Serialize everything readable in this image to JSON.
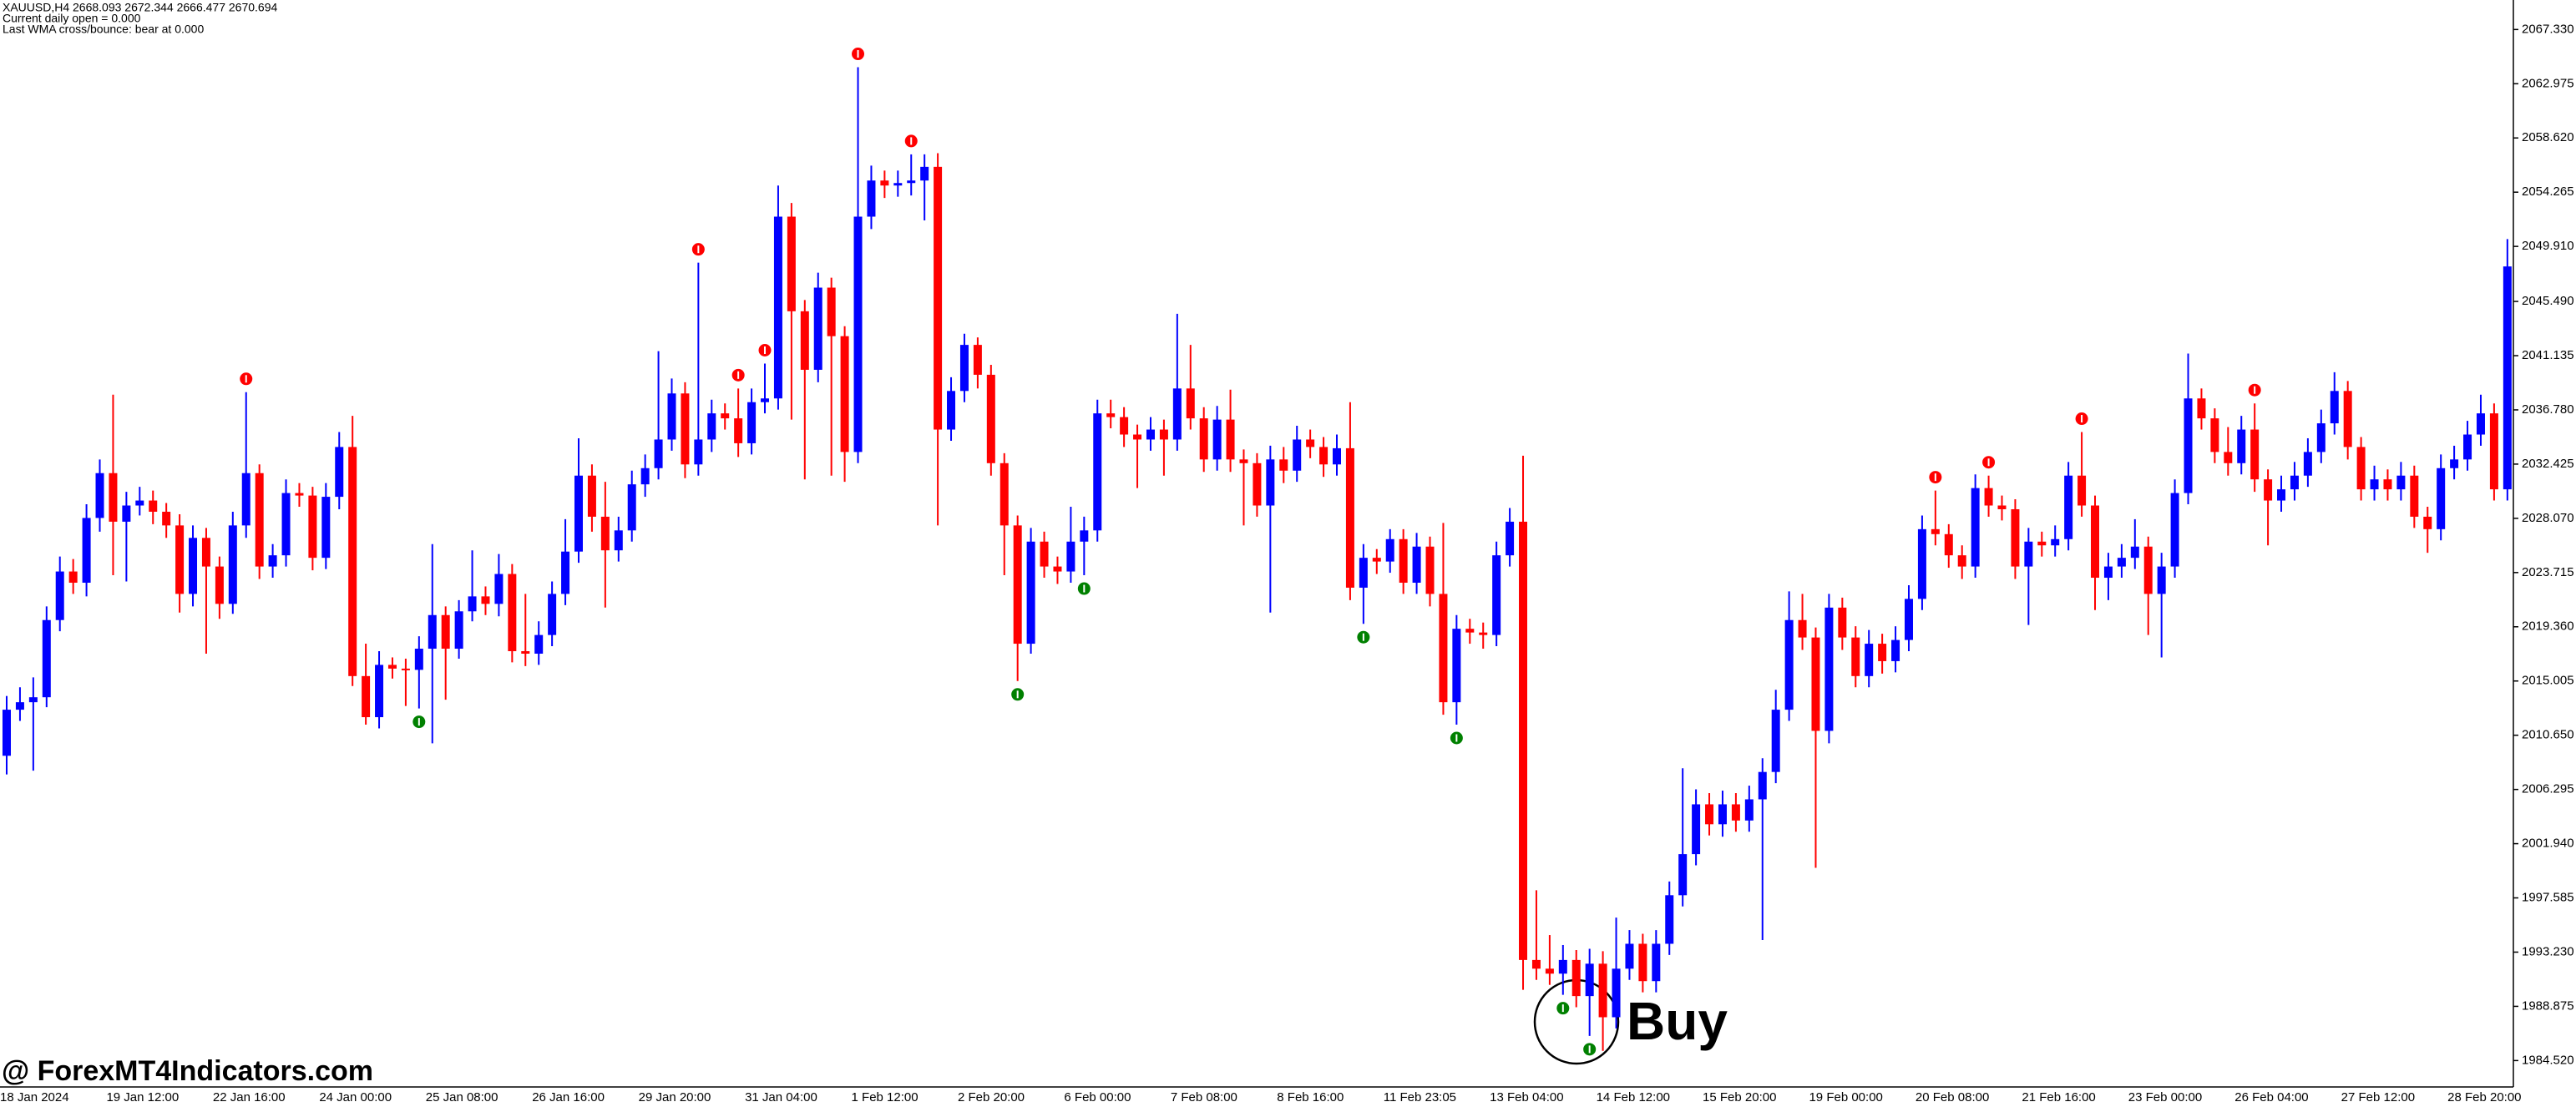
{
  "header": [
    "XAUUSD,H4  2668.093 2672.344 2666.477 2670.694",
    "Current daily open = 0.000",
    "Last WMA cross/bounce: bear at 0.000"
  ],
  "watermark": "@ ForexMT4Indicators.com",
  "chart_data": {
    "type": "candlestick",
    "annotation": "Buy",
    "up_color": "#0000ff",
    "down_color": "#ff0000",
    "sell_color": "#ff0000",
    "buy_color": "#008000",
    "grid": false,
    "ylim": [
      1982.4,
      2069.7
    ],
    "yticks": [
      {
        "value": 2067.33,
        "label": "2067.330"
      },
      2062.975,
      {
        "value": 2058.62,
        "label": "2058.620"
      },
      2054.265,
      {
        "value": 2049.91,
        "label": "2049.910"
      },
      {
        "value": 2045.49,
        "label": "2045.490"
      },
      2041.135,
      {
        "value": 2036.78,
        "label": "2036.780"
      },
      2032.425,
      {
        "value": 2028.07,
        "label": "2028.070"
      },
      2023.715,
      {
        "value": 2019.36,
        "label": "2019.360"
      },
      2015.005,
      {
        "value": 2010.65,
        "label": "2010.650"
      },
      2006.295,
      {
        "value": 2001.94,
        "label": "2001.940"
      },
      1997.585,
      {
        "value": 1993.23,
        "label": "1993.230"
      },
      1988.875,
      {
        "value": 1984.52,
        "label": "1984.520"
      }
    ],
    "categories": [
      "18 Jan 2024",
      null,
      null,
      null,
      null,
      null,
      null,
      null,
      "19 Jan 12:00",
      null,
      null,
      null,
      null,
      null,
      null,
      null,
      "22 Jan 16:00",
      null,
      null,
      null,
      null,
      null,
      null,
      null,
      "24 Jan 00:00",
      null,
      null,
      null,
      null,
      null,
      null,
      null,
      "25 Jan 08:00",
      null,
      null,
      null,
      null,
      null,
      null,
      null,
      "26 Jan 16:00",
      null,
      null,
      null,
      null,
      null,
      null,
      null,
      "29 Jan 20:00",
      null,
      null,
      null,
      null,
      null,
      null,
      null,
      "31 Jan 04:00",
      null,
      null,
      null,
      null,
      null,
      null,
      null,
      "1 Feb 12:00",
      null,
      null,
      null,
      null,
      null,
      null,
      null,
      "2 Feb 20:00",
      null,
      null,
      null,
      null,
      null,
      null,
      null,
      "6 Feb 00:00",
      null,
      null,
      null,
      null,
      null,
      null,
      null,
      "7 Feb 08:00",
      null,
      null,
      null,
      null,
      null,
      null,
      null,
      "8 Feb 16:00",
      null,
      null,
      null,
      null,
      null,
      null,
      null,
      "11 Feb 23:05",
      null,
      null,
      null,
      null,
      null,
      null,
      null,
      "13 Feb 04:00",
      null,
      null,
      null,
      null,
      null,
      null,
      null,
      "14 Feb 12:00",
      null,
      null,
      null,
      null,
      null,
      null,
      null,
      "15 Feb 20:00",
      null,
      null,
      null,
      null,
      null,
      null,
      null,
      "19 Feb 00:00",
      null,
      null,
      null,
      null,
      null,
      null,
      null,
      "20 Feb 08:00",
      null,
      null,
      null,
      null,
      null,
      null,
      null,
      "21 Feb 16:00",
      null,
      null,
      null,
      null,
      null,
      null,
      null,
      "23 Feb 00:00",
      null,
      null,
      null,
      null,
      null,
      null,
      null,
      "26 Feb 04:00",
      null,
      null,
      null,
      null,
      null,
      null,
      null,
      "27 Feb 12:00",
      null,
      null,
      null,
      null,
      null,
      null,
      null,
      "28 Feb 20:00",
      null,
      null,
      null,
      null
    ],
    "open": [
      2009.0,
      2012.7,
      2013.3,
      2013.7,
      2019.9,
      2023.8,
      2022.9,
      2028.1,
      2031.7,
      2027.8,
      2029.1,
      2029.5,
      2028.6,
      2027.5,
      2022.0,
      2026.5,
      2024.2,
      2021.2,
      2027.5,
      2031.7,
      2024.2,
      2025.1,
      2030.1,
      2029.9,
      2024.9,
      2029.8,
      2033.8,
      2015.4,
      2012.1,
      2016.3,
      2016.0,
      2015.9,
      2017.6,
      2020.3,
      2017.6,
      2020.6,
      2021.8,
      2021.2,
      2023.6,
      2017.4,
      2017.2,
      2018.7,
      2022.0,
      2025.4,
      2031.5,
      2028.2,
      2025.5,
      2027.1,
      2030.8,
      2032.1,
      2034.4,
      2038.1,
      2032.4,
      2034.4,
      2036.5,
      2036.1,
      2034.1,
      2037.4,
      2037.7,
      2052.3,
      2044.7,
      2040.0,
      2046.6,
      2042.7,
      2033.4,
      2052.3,
      2055.2,
      2054.8,
      2055.0,
      2055.2,
      2056.3,
      2035.2,
      2038.3,
      2042.0,
      2039.6,
      2032.5,
      2027.5,
      2018.0,
      2026.2,
      2024.2,
      2023.8,
      2026.2,
      2027.1,
      2036.5,
      2036.2,
      2034.8,
      2034.4,
      2035.2,
      2034.4,
      2038.5,
      2036.1,
      2032.8,
      2036.0,
      2032.8,
      2032.5,
      2029.1,
      2032.8,
      2031.9,
      2034.4,
      2033.8,
      2032.4,
      2033.7,
      2022.5,
      2024.9,
      2024.6,
      2026.4,
      2022.9,
      2025.8,
      2022.0,
      2013.3,
      2019.2,
      2018.9,
      2018.7,
      2025.1,
      2027.8,
      1992.6,
      1991.9,
      1991.5,
      1992.6,
      1989.7,
      1992.3,
      1988.0,
      1991.9,
      1993.9,
      1990.9,
      1993.9,
      1997.8,
      2001.1,
      2005.1,
      2003.5,
      2005.1,
      2003.8,
      2005.5,
      2007.7,
      2012.7,
      2019.9,
      2018.5,
      2011.0,
      2020.9,
      2018.5,
      2015.4,
      2018.0,
      2016.6,
      2018.3,
      2021.6,
      2027.2,
      2026.8,
      2025.1,
      2024.2,
      2030.5,
      2029.1,
      2028.8,
      2024.2,
      2026.2,
      2025.9,
      2026.4,
      2031.5,
      2029.1,
      2023.3,
      2024.2,
      2024.9,
      2025.8,
      2022.0,
      2024.2,
      2030.1,
      2037.7,
      2036.1,
      2033.4,
      2032.5,
      2035.2,
      2031.2,
      2029.5,
      2030.4,
      2031.5,
      2033.4,
      2035.7,
      2038.3,
      2033.8,
      2030.4,
      2031.2,
      2030.4,
      2031.5,
      2028.2,
      2027.2,
      2032.1,
      2032.8,
      2034.8,
      2036.5,
      2030.4
    ],
    "high": [
      2013.8,
      2014.5,
      2015.3,
      2021.0,
      2025.0,
      2024.8,
      2029.2,
      2032.8,
      2038.0,
      2030.2,
      2030.6,
      2030.3,
      2029.3,
      2028.4,
      2027.5,
      2027.3,
      2025.0,
      2028.6,
      2038.2,
      2032.4,
      2026.0,
      2031.2,
      2030.9,
      2030.6,
      2030.9,
      2035.0,
      2036.3,
      2018.0,
      2017.4,
      2016.9,
      2016.8,
      2018.6,
      2026.0,
      2021.0,
      2021.5,
      2025.5,
      2022.6,
      2025.2,
      2024.4,
      2022.0,
      2019.8,
      2023.0,
      2028.0,
      2034.5,
      2032.4,
      2031.0,
      2028.2,
      2031.9,
      2033.2,
      2041.5,
      2039.3,
      2039.0,
      2048.6,
      2037.6,
      2037.3,
      2038.5,
      2038.5,
      2040.5,
      2054.8,
      2053.4,
      2045.6,
      2047.8,
      2047.4,
      2043.5,
      2064.3,
      2056.4,
      2056.0,
      2056.0,
      2057.3,
      2057.3,
      2057.4,
      2039.4,
      2042.9,
      2042.6,
      2040.4,
      2033.3,
      2028.3,
      2027.3,
      2027.0,
      2025.0,
      2029.0,
      2028.2,
      2037.6,
      2037.6,
      2037.0,
      2035.6,
      2036.2,
      2036.0,
      2044.5,
      2042.0,
      2037.0,
      2037.1,
      2038.4,
      2033.6,
      2033.3,
      2033.9,
      2033.8,
      2035.5,
      2035.2,
      2034.6,
      2034.8,
      2037.4,
      2026.0,
      2025.6,
      2027.2,
      2027.2,
      2026.9,
      2026.6,
      2027.7,
      2020.3,
      2020.0,
      2019.7,
      2026.2,
      2028.9,
      2033.1,
      1998.2,
      1994.6,
      1993.8,
      1993.4,
      1993.5,
      1993.3,
      1996.0,
      1995.0,
      1994.7,
      1995.0,
      1998.9,
      2008.0,
      2006.3,
      2006.0,
      2006.2,
      2006.0,
      2006.6,
      2008.8,
      2014.3,
      2022.2,
      2022.0,
      2019.3,
      2022.0,
      2021.7,
      2019.4,
      2019.1,
      2018.8,
      2019.4,
      2022.7,
      2028.3,
      2030.3,
      2027.6,
      2025.9,
      2031.6,
      2031.5,
      2029.9,
      2029.6,
      2027.3,
      2027.0,
      2027.5,
      2032.6,
      2035.0,
      2029.9,
      2025.3,
      2026.0,
      2028.0,
      2026.6,
      2025.3,
      2031.2,
      2041.3,
      2038.5,
      2036.9,
      2035.4,
      2036.3,
      2037.3,
      2032.0,
      2031.5,
      2032.6,
      2034.5,
      2036.8,
      2039.8,
      2039.1,
      2034.6,
      2032.3,
      2032.0,
      2032.6,
      2032.3,
      2029.0,
      2033.2,
      2033.9,
      2035.9,
      2038.0,
      2037.3,
      2050.5
    ],
    "low": [
      2007.5,
      2011.8,
      2007.8,
      2012.9,
      2019.0,
      2022.0,
      2021.8,
      2027.0,
      2023.5,
      2023.0,
      2028.3,
      2027.6,
      2026.5,
      2020.5,
      2021.0,
      2017.2,
      2020.0,
      2020.4,
      2026.5,
      2023.2,
      2023.3,
      2024.2,
      2029.0,
      2023.9,
      2024.0,
      2028.8,
      2014.6,
      2011.5,
      2011.2,
      2015.2,
      2013.0,
      2012.8,
      2010.0,
      2013.5,
      2016.8,
      2019.8,
      2020.3,
      2020.2,
      2016.5,
      2016.2,
      2016.3,
      2017.8,
      2021.1,
      2024.5,
      2027.0,
      2020.9,
      2024.6,
      2026.2,
      2029.8,
      2031.2,
      2033.5,
      2031.3,
      2031.5,
      2033.4,
      2035.2,
      2033.0,
      2033.2,
      2036.5,
      2036.8,
      2036.0,
      2031.2,
      2039.0,
      2031.5,
      2031.0,
      2032.5,
      2051.3,
      2053.8,
      2053.9,
      2054.0,
      2052.0,
      2027.5,
      2034.3,
      2037.4,
      2038.5,
      2031.5,
      2023.5,
      2015.0,
      2017.2,
      2023.3,
      2022.8,
      2022.9,
      2023.5,
      2026.2,
      2035.3,
      2033.8,
      2030.5,
      2033.5,
      2031.5,
      2033.5,
      2035.2,
      2031.8,
      2031.9,
      2031.8,
      2027.5,
      2028.2,
      2020.5,
      2030.9,
      2031.0,
      2032.9,
      2031.4,
      2031.5,
      2021.5,
      2019.6,
      2023.6,
      2023.7,
      2022.0,
      2022.0,
      2021.0,
      2012.3,
      2011.5,
      2018.0,
      2017.6,
      2017.8,
      2024.2,
      1990.2,
      1991.0,
      1990.6,
      1989.8,
      1988.8,
      1986.5,
      1985.3,
      1987.1,
      1991.0,
      1990.0,
      1990.0,
      1993.0,
      1996.9,
      2000.2,
      2002.6,
      2002.5,
      2002.9,
      2002.9,
      1994.2,
      2006.8,
      2011.8,
      2017.5,
      2000.0,
      2010.0,
      2017.5,
      2014.5,
      2014.5,
      2015.6,
      2015.7,
      2017.4,
      2020.7,
      2025.9,
      2024.1,
      2023.2,
      2023.3,
      2028.2,
      2027.9,
      2023.2,
      2019.5,
      2025.0,
      2025.0,
      2025.5,
      2028.2,
      2020.7,
      2021.5,
      2023.3,
      2024.0,
      2018.7,
      2016.9,
      2023.3,
      2029.2,
      2035.2,
      2032.5,
      2031.5,
      2031.6,
      2030.2,
      2025.9,
      2028.6,
      2029.5,
      2030.6,
      2032.5,
      2034.8,
      2032.8,
      2029.5,
      2029.5,
      2029.5,
      2029.5,
      2027.3,
      2025.3,
      2026.3,
      2031.2,
      2031.9,
      2033.9,
      2029.5,
      2029.5
    ],
    "close": [
      2012.7,
      2013.3,
      2013.7,
      2019.9,
      2023.8,
      2022.9,
      2028.1,
      2031.7,
      2027.8,
      2029.1,
      2029.5,
      2028.6,
      2027.5,
      2022.0,
      2026.5,
      2024.2,
      2021.2,
      2027.5,
      2031.7,
      2024.2,
      2025.1,
      2030.1,
      2029.9,
      2024.9,
      2029.8,
      2033.8,
      2015.4,
      2012.1,
      2016.3,
      2016.0,
      2015.9,
      2017.6,
      2020.3,
      2017.6,
      2020.6,
      2021.8,
      2021.2,
      2023.6,
      2017.4,
      2017.2,
      2018.7,
      2022.0,
      2025.4,
      2031.5,
      2028.2,
      2025.5,
      2027.1,
      2030.8,
      2032.1,
      2034.4,
      2038.1,
      2032.4,
      2034.4,
      2036.5,
      2036.1,
      2034.1,
      2037.4,
      2037.7,
      2052.3,
      2044.7,
      2040.0,
      2046.6,
      2042.7,
      2033.4,
      2052.3,
      2055.2,
      2054.8,
      2055.0,
      2055.2,
      2056.3,
      2035.2,
      2038.3,
      2042.0,
      2039.6,
      2032.5,
      2027.5,
      2018.0,
      2026.2,
      2024.2,
      2023.8,
      2026.2,
      2027.1,
      2036.5,
      2036.2,
      2034.8,
      2034.4,
      2035.2,
      2034.4,
      2038.5,
      2036.1,
      2032.8,
      2036.0,
      2032.8,
      2032.5,
      2029.1,
      2032.8,
      2031.9,
      2034.4,
      2033.8,
      2032.4,
      2033.7,
      2022.5,
      2024.9,
      2024.6,
      2026.4,
      2022.9,
      2025.8,
      2022.0,
      2013.3,
      2019.2,
      2018.9,
      2018.7,
      2025.1,
      2027.8,
      1992.6,
      1991.9,
      1991.5,
      1992.6,
      1989.7,
      1992.3,
      1988.0,
      1991.9,
      1993.9,
      1990.9,
      1993.9,
      1997.8,
      2001.1,
      2005.1,
      2003.5,
      2005.1,
      2003.8,
      2005.5,
      2007.7,
      2012.7,
      2019.9,
      2018.5,
      2011.0,
      2020.9,
      2018.5,
      2015.4,
      2018.0,
      2016.6,
      2018.3,
      2021.6,
      2027.2,
      2026.8,
      2025.1,
      2024.2,
      2030.5,
      2029.1,
      2028.8,
      2024.2,
      2026.2,
      2025.9,
      2026.4,
      2031.5,
      2029.1,
      2023.3,
      2024.2,
      2024.9,
      2025.8,
      2022.0,
      2024.2,
      2030.1,
      2037.7,
      2036.1,
      2033.4,
      2032.5,
      2035.2,
      2031.2,
      2029.5,
      2030.4,
      2031.5,
      2033.4,
      2035.7,
      2038.3,
      2033.8,
      2030.4,
      2031.2,
      2030.4,
      2031.5,
      2028.2,
      2027.2,
      2032.1,
      2032.8,
      2034.8,
      2036.5,
      2030.4,
      2048.3
    ],
    "sell_signals": [
      18,
      52,
      55,
      57,
      64,
      68,
      145,
      149,
      156,
      169
    ],
    "buy_signals": [
      31,
      76,
      81,
      102,
      109,
      117,
      119
    ]
  }
}
